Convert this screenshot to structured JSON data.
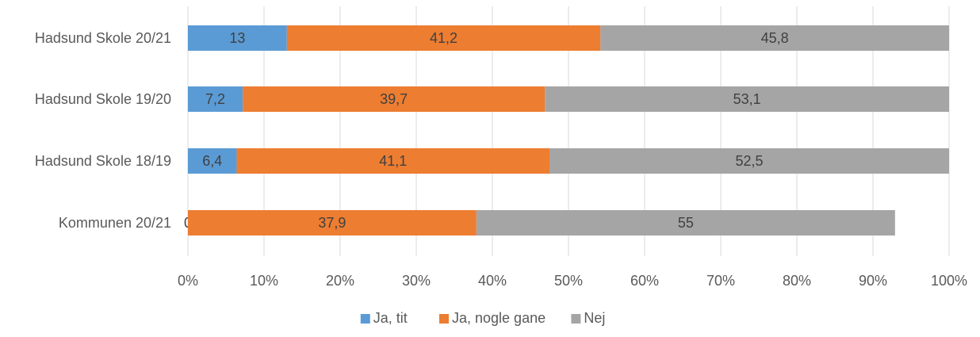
{
  "chart_data": {
    "type": "bar",
    "orientation": "horizontal",
    "stacked": "percent",
    "categories": [
      "Hadsund Skole 20/21",
      "Hadsund Skole 19/20",
      "Hadsund Skole 18/19",
      "Kommunen 20/21"
    ],
    "series": [
      {
        "name": "Ja, tit",
        "values": [
          13,
          7.2,
          6.4,
          0
        ],
        "labels": [
          "13",
          "7,2",
          "6,4",
          "0"
        ],
        "color": "#5B9BD5"
      },
      {
        "name": "Ja, nogle gane",
        "values": [
          41.2,
          39.7,
          41.1,
          37.9
        ],
        "labels": [
          "41,2",
          "39,7",
          "41,1",
          "37,9"
        ],
        "color": "#ED7D31"
      },
      {
        "name": "Nej",
        "values": [
          45.8,
          53.1,
          52.5,
          55
        ],
        "labels": [
          "45,8",
          "53,1",
          "52,5",
          "55"
        ],
        "color": "#A5A5A5"
      }
    ],
    "x_ticks": [
      "0%",
      "10%",
      "20%",
      "30%",
      "40%",
      "50%",
      "60%",
      "70%",
      "80%",
      "90%",
      "100%"
    ],
    "xlim": [
      0,
      100
    ],
    "grid": true,
    "legend": "bottom-center",
    "title": "",
    "xlabel": "",
    "ylabel": ""
  }
}
